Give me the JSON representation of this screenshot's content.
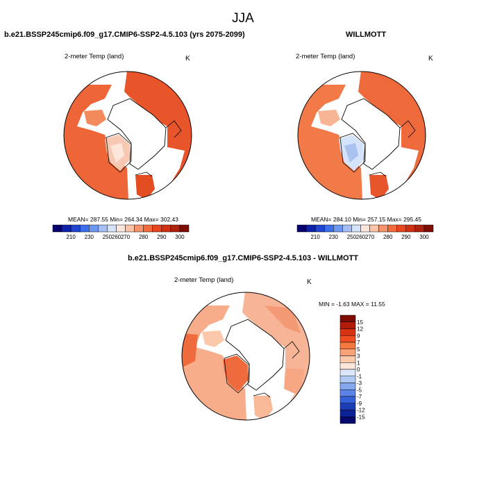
{
  "title": "JJA",
  "panels": [
    {
      "id": "case",
      "header": "b.e21.BSSP245cmip6.f09_g17.CMIP6-SSP2-4.5.103 (yrs 2075-2099)",
      "variable": "2-meter Temp (land)",
      "units": "K",
      "stats": "MEAN= 287.55   Min= 264.34   Max= 302.43"
    },
    {
      "id": "obs",
      "header": "WILLMOTT",
      "variable": "2-meter Temp (land)",
      "units": "K",
      "stats": "MEAN= 284.10   Min= 257.15   Max= 295.45"
    },
    {
      "id": "diff",
      "header": "b.e21.BSSP245cmip6.f09_g17.CMIP6-SSP2-4.5.103 - WILLMOTT",
      "variable": "2-meter Temp (land)",
      "units": "K",
      "stats": "MIN =  -1.63 MAX =  11.55"
    }
  ],
  "abs_colorbar": {
    "ticks": [
      "210",
      "230",
      "250",
      "260",
      "270",
      "280",
      "290",
      "300"
    ],
    "colors": [
      "#08006e",
      "#0d22a8",
      "#1f46d2",
      "#3b6ee8",
      "#6d98f0",
      "#a3bff5",
      "#d4e2fa",
      "#fde7dc",
      "#fbc3a8",
      "#f7946c",
      "#f26a3e",
      "#e8461f",
      "#cf3212",
      "#b0200b",
      "#7d0c04"
    ]
  },
  "diff_colorbar": {
    "labels": [
      "15",
      "12",
      "9",
      "7",
      "5",
      "3",
      "1",
      "0",
      "-1",
      "-3",
      "-5",
      "-7",
      "-9",
      "-12",
      "-15"
    ],
    "colors": [
      "#7d0c04",
      "#b01c0a",
      "#d93212",
      "#f04d23",
      "#f6793f",
      "#f9a277",
      "#fcc8ac",
      "#fde6da",
      "#dae6fa",
      "#afc8f5",
      "#84a8ee",
      "#5b84e6",
      "#3660d8",
      "#1c3db8",
      "#0d2296",
      "#06086e"
    ]
  },
  "colors": {
    "land_warm": "#e8552a",
    "land_mid": "#f06f3d",
    "land_cool": "#f7a67f",
    "greenland_case": "#f8c9b2",
    "greenland_obs": "#a9c2ee",
    "diff_land": "#f8b496",
    "diff_warm": "#ef6a3c"
  }
}
